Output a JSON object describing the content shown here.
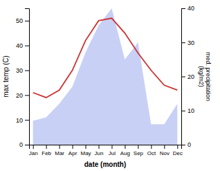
{
  "chart_data": {
    "type": "line",
    "categories": [
      "Jan",
      "Feb",
      "Mar",
      "Apr",
      "May",
      "Jun",
      "Jul",
      "Aug",
      "Sep",
      "Oct",
      "Nov",
      "Dec"
    ],
    "series": [
      {
        "type": "area",
        "axis": "y2",
        "color": "#c8d0f5",
        "values": [
          7,
          8,
          12,
          17,
          27,
          35,
          40,
          25,
          30,
          6,
          6,
          12
        ]
      },
      {
        "type": "line",
        "color": "#cc3333",
        "values": [
          21,
          19,
          22,
          30,
          42,
          50,
          51,
          45,
          37,
          30,
          24,
          22
        ]
      }
    ],
    "xlabel": "date (month)",
    "ylabel": "max temp (C)",
    "y2label": "med. precipitation\n(kg/m2)",
    "ylim": [
      0,
      55
    ],
    "yticks": [
      0,
      10,
      20,
      30,
      40,
      50
    ],
    "y2lim": [
      0,
      40
    ],
    "y2ticks": [
      0,
      10,
      20,
      30,
      40
    ],
    "grid": false
  }
}
